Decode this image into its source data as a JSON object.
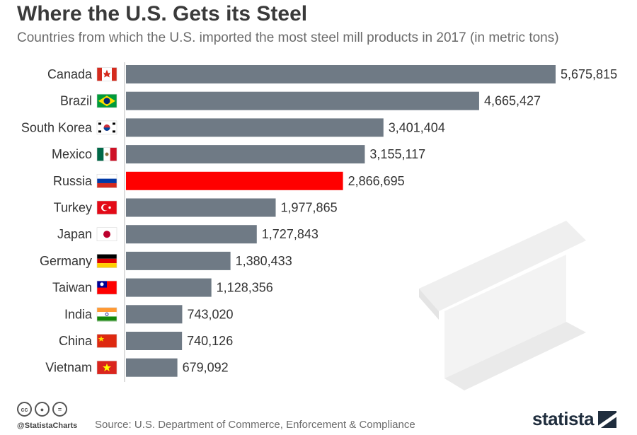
{
  "header": {
    "title": "Where the U.S. Gets its Steel",
    "subtitle": "Countries from which the U.S. imported the most steel mill products in 2017 (in metric tons)"
  },
  "chart_data": {
    "type": "bar",
    "orientation": "horizontal",
    "categories": [
      "Canada",
      "Brazil",
      "South Korea",
      "Mexico",
      "Russia",
      "Turkey",
      "Japan",
      "Germany",
      "Taiwan",
      "India",
      "China",
      "Vietnam"
    ],
    "values": [
      5675815,
      4665427,
      3401404,
      3155117,
      2866695,
      1977865,
      1727843,
      1380433,
      1128356,
      743020,
      740126,
      679092
    ],
    "value_labels": [
      "5,675,815",
      "4,665,427",
      "3,401,404",
      "3,155,117",
      "2,866,695",
      "1,977,865",
      "1,727,843",
      "1,380,433",
      "1,128,356",
      "743,020",
      "740,126",
      "679,092"
    ],
    "highlight": "Russia",
    "flags": [
      "canada-flag-icon",
      "brazil-flag-icon",
      "south-korea-flag-icon",
      "mexico-flag-icon",
      "russia-flag-icon",
      "turkey-flag-icon",
      "japan-flag-icon",
      "germany-flag-icon",
      "taiwan-flag-icon",
      "india-flag-icon",
      "china-flag-icon",
      "vietnam-flag-icon"
    ],
    "colors": {
      "bar": "#6f7a85",
      "highlight": "#ff0000"
    },
    "xlim": [
      0,
      5675815
    ],
    "grid": false,
    "legend": "none"
  },
  "footer": {
    "handle": "@StatistaCharts",
    "source": "Source: U.S. Department of Commerce, Enforcement & Compliance",
    "logo": "statista",
    "license_icons": [
      "cc",
      "by",
      "="
    ]
  }
}
